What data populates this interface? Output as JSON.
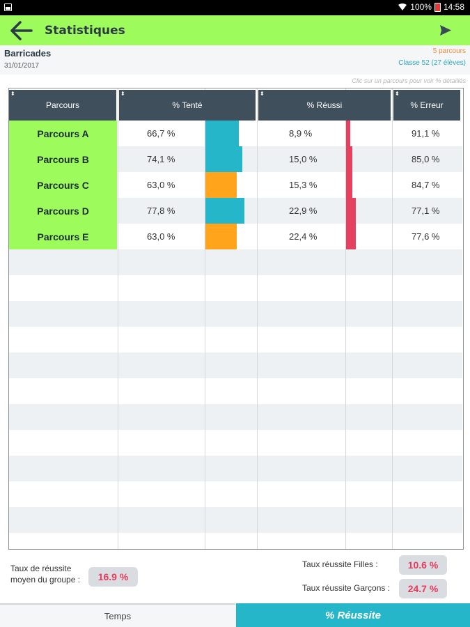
{
  "status_bar": {
    "battery": "100%",
    "time": "14:58"
  },
  "app_bar": {
    "title": "Statistiques",
    "back_icon": "arrow-left-icon",
    "send_icon": "send-icon"
  },
  "info": {
    "activity_name": "Barricades",
    "date": "31/01/2017",
    "parcours_count": "5 parcours",
    "classe": "Classe 52 (27 élèves)",
    "hint": "Clic sur un parcours pour voir % détaillés"
  },
  "table": {
    "headers": {
      "parcours": "Parcours",
      "tente": "% Tenté",
      "reussi": "% Réussi",
      "erreur": "% Erreur"
    },
    "rows": [
      {
        "name": "Parcours A",
        "tente": "66,7 %",
        "tente_value": 66.7,
        "tente_color": "#26b6c9",
        "reussi": "8,9 %",
        "reussi_value": 8.9,
        "erreur": "91,1 %"
      },
      {
        "name": "Parcours B",
        "tente": "74,1 %",
        "tente_value": 74.1,
        "tente_color": "#26b6c9",
        "reussi": "15,0 %",
        "reussi_value": 15.0,
        "erreur": "85,0 %"
      },
      {
        "name": "Parcours C",
        "tente": "63,0 %",
        "tente_value": 63.0,
        "tente_color": "#ffa41b",
        "reussi": "15,3 %",
        "reussi_value": 15.3,
        "erreur": "84,7 %"
      },
      {
        "name": "Parcours D",
        "tente": "77,8 %",
        "tente_value": 77.8,
        "tente_color": "#26b6c9",
        "reussi": "22,9 %",
        "reussi_value": 22.9,
        "erreur": "77,1 %"
      },
      {
        "name": "Parcours E",
        "tente": "63,0 %",
        "tente_value": 63.0,
        "tente_color": "#ffa41b",
        "reussi": "22,4 %",
        "reussi_value": 22.4,
        "erreur": "77,6 %"
      }
    ],
    "reussi_bar_color": "#e5405e"
  },
  "summary": {
    "group_label_line1": "Taux de réussite",
    "group_label_line2": "moyen du groupe :",
    "group_value": "16.9 %",
    "filles_label": "Taux réussite Filles :",
    "filles_value": "10.6 %",
    "garcons_label": "Taux réussite Garçons :",
    "garcons_value": "24.7 %"
  },
  "tabs": {
    "temps": "Temps",
    "reussite": "% Réussite"
  },
  "colors": {
    "accent_green": "#9dfc5b",
    "accent_teal": "#26b6c9",
    "header_dark": "#404f5c",
    "value_red": "#e83a5b"
  }
}
